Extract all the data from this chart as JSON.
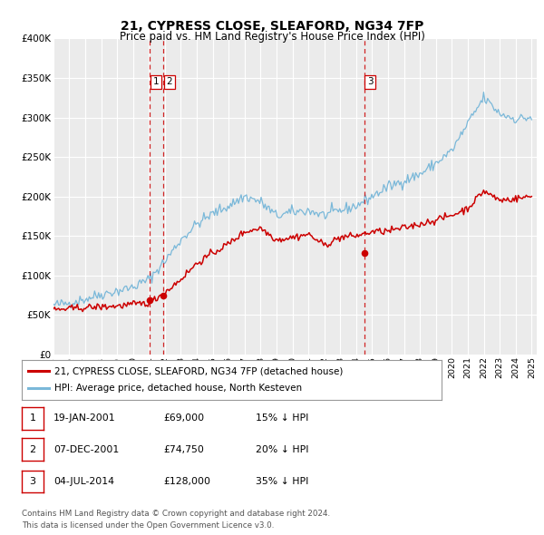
{
  "title": "21, CYPRESS CLOSE, SLEAFORD, NG34 7FP",
  "subtitle": "Price paid vs. HM Land Registry's House Price Index (HPI)",
  "background_color": "#ffffff",
  "plot_bg_color": "#ebebeb",
  "grid_color": "#ffffff",
  "hpi_color": "#7ab8d9",
  "price_color": "#cc0000",
  "vline_color": "#cc0000",
  "ylim": [
    0,
    400000
  ],
  "yticks": [
    0,
    50000,
    100000,
    150000,
    200000,
    250000,
    300000,
    350000,
    400000
  ],
  "ytick_labels": [
    "£0",
    "£50K",
    "£100K",
    "£150K",
    "£200K",
    "£250K",
    "£300K",
    "£350K",
    "£400K"
  ],
  "xlim_start": 1995.0,
  "xlim_end": 2025.3,
  "transactions": [
    {
      "label": "1",
      "date": 2001.05,
      "price": 69000
    },
    {
      "label": "2",
      "date": 2001.92,
      "price": 74750
    },
    {
      "label": "3",
      "date": 2014.51,
      "price": 128000
    }
  ],
  "hpi_anchors": {
    "1995": 62000,
    "1996": 65000,
    "1997": 70000,
    "1998": 76000,
    "1999": 80000,
    "2000": 85000,
    "2001": 95000,
    "2002": 118000,
    "2003": 145000,
    "2004": 165000,
    "2005": 178000,
    "2006": 188000,
    "2007": 200000,
    "2008": 193000,
    "2009": 175000,
    "2010": 180000,
    "2011": 182000,
    "2012": 176000,
    "2013": 182000,
    "2014": 188000,
    "2015": 200000,
    "2016": 212000,
    "2017": 220000,
    "2018": 228000,
    "2019": 242000,
    "2020": 258000,
    "2021": 292000,
    "2022": 325000,
    "2023": 305000,
    "2024": 298000,
    "2025": 300000
  },
  "price_anchors": {
    "1995": 56000,
    "1996": 57500,
    "1997": 59000,
    "1998": 60000,
    "1999": 61000,
    "2000": 63000,
    "2001": 65000,
    "2002": 78000,
    "2003": 95000,
    "2004": 115000,
    "2005": 128000,
    "2006": 140000,
    "2007": 155000,
    "2008": 160000,
    "2009": 145000,
    "2010": 148000,
    "2011": 152000,
    "2012": 138000,
    "2013": 148000,
    "2014": 150000,
    "2015": 155000,
    "2016": 156000,
    "2017": 160000,
    "2018": 165000,
    "2019": 170000,
    "2020": 176000,
    "2021": 185000,
    "2022": 207000,
    "2023": 195000,
    "2024": 197000,
    "2025": 200000
  },
  "noise_seed": 42,
  "hpi_noise": 3500,
  "price_noise": 2200,
  "legend_entries": [
    {
      "label": "21, CYPRESS CLOSE, SLEAFORD, NG34 7FP (detached house)",
      "color": "#cc0000"
    },
    {
      "label": "HPI: Average price, detached house, North Kesteven",
      "color": "#7ab8d9"
    }
  ],
  "table_rows": [
    {
      "num": "1",
      "date": "19-JAN-2001",
      "price": "£69,000",
      "change": "15% ↓ HPI"
    },
    {
      "num": "2",
      "date": "07-DEC-2001",
      "price": "£74,750",
      "change": "20% ↓ HPI"
    },
    {
      "num": "3",
      "date": "04-JUL-2014",
      "price": "£128,000",
      "change": "35% ↓ HPI"
    }
  ],
  "footnote": "Contains HM Land Registry data © Crown copyright and database right 2024.\nThis data is licensed under the Open Government Licence v3.0."
}
